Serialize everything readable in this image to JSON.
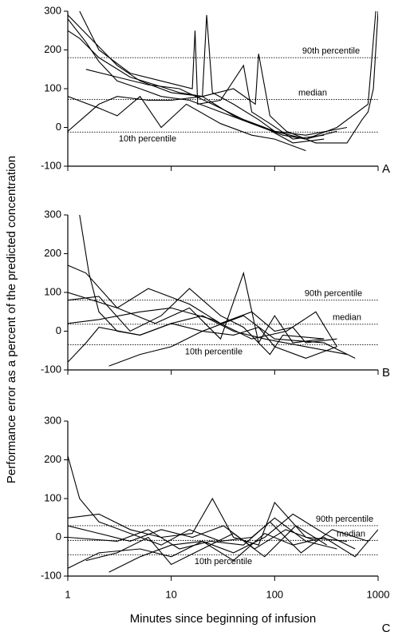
{
  "chart_data": [
    {
      "type": "line",
      "panel": "A",
      "log_x": true,
      "xlim": [
        1,
        1000
      ],
      "xticks": [
        1,
        10,
        100,
        1000
      ],
      "ylim": [
        -100,
        300
      ],
      "yticks": [
        -100,
        0,
        100,
        200,
        300
      ],
      "reference_lines": [
        {
          "label": "90th percentile",
          "value": 180
        },
        {
          "label": "median",
          "value": 72
        },
        {
          "label": "10th percentile",
          "value": -12
        }
      ],
      "series": [
        {
          "color": "#000000",
          "x": [
            1,
            1.5,
            2,
            3,
            5,
            8,
            15,
            30,
            60,
            120,
            200,
            400
          ],
          "values": [
            280,
            220,
            170,
            120,
            100,
            80,
            70,
            40,
            10,
            -20,
            -30,
            -10
          ]
        },
        {
          "color": "#000000",
          "x": [
            1,
            1.3,
            2,
            4,
            7,
            12,
            20,
            40,
            80,
            150,
            300
          ],
          "values": [
            250,
            230,
            180,
            130,
            110,
            90,
            80,
            30,
            0,
            -40,
            -30
          ]
        },
        {
          "color": "#000000",
          "x": [
            1,
            2,
            3,
            6,
            10,
            20,
            22,
            25,
            40,
            70,
            100,
            200,
            500
          ],
          "values": [
            -10,
            60,
            80,
            70,
            70,
            80,
            290,
            90,
            60,
            20,
            -10,
            -20,
            0
          ]
        },
        {
          "color": "#000000",
          "x": [
            1.3,
            2,
            4,
            8,
            16,
            17,
            18,
            30,
            50,
            60,
            90,
            150,
            300
          ],
          "values": [
            300,
            200,
            140,
            120,
            100,
            250,
            60,
            70,
            160,
            40,
            10,
            -30,
            -20
          ]
        },
        {
          "color": "#000000",
          "x": [
            1,
            3,
            5,
            10,
            20,
            40,
            65,
            70,
            90,
            130,
            250,
            500,
            700,
            800,
            900,
            1000
          ],
          "values": [
            290,
            160,
            120,
            90,
            80,
            100,
            60,
            190,
            30,
            -10,
            -40,
            -40,
            20,
            40,
            100,
            300
          ]
        },
        {
          "color": "#000000",
          "x": [
            1,
            2,
            3,
            5,
            8,
            14,
            30,
            60,
            100,
            200
          ],
          "values": [
            80,
            50,
            30,
            80,
            0,
            60,
            10,
            -20,
            -30,
            -60
          ]
        },
        {
          "color": "#000000",
          "x": [
            1.5,
            3,
            6,
            12,
            25,
            50,
            100,
            200,
            400,
            800,
            950
          ],
          "values": [
            150,
            130,
            110,
            100,
            60,
            20,
            -10,
            -30,
            0,
            60,
            300
          ]
        }
      ]
    },
    {
      "type": "line",
      "panel": "B",
      "log_x": true,
      "xlim": [
        1,
        1000
      ],
      "xticks": [
        1,
        10,
        100,
        1000
      ],
      "ylim": [
        -100,
        300
      ],
      "yticks": [
        -100,
        0,
        100,
        200,
        300
      ],
      "y_label": "Performance error as a percent of the predicted concentration",
      "reference_lines": [
        {
          "label": "90th percentile",
          "value": 80
        },
        {
          "label": "median",
          "value": 18
        },
        {
          "label": "10th percentile",
          "value": -35
        }
      ],
      "series": [
        {
          "color": "#000000",
          "x": [
            1.3,
            1.6,
            2,
            3,
            5,
            10,
            20,
            40,
            80,
            200,
            500
          ],
          "values": [
            300,
            150,
            50,
            0,
            -10,
            20,
            40,
            0,
            -20,
            -40,
            -60
          ]
        },
        {
          "color": "#000000",
          "x": [
            1,
            1.5,
            3,
            6,
            15,
            30,
            60,
            100,
            150,
            200,
            400
          ],
          "values": [
            170,
            150,
            60,
            110,
            70,
            20,
            50,
            0,
            10,
            -30,
            -20
          ]
        },
        {
          "color": "#000000",
          "x": [
            1,
            2,
            4,
            8,
            15,
            30,
            50,
            90,
            120,
            300
          ],
          "values": [
            80,
            90,
            0,
            40,
            110,
            40,
            10,
            -60,
            -10,
            -20
          ]
        },
        {
          "color": "#000000",
          "x": [
            1,
            1.5,
            2,
            5,
            10,
            20,
            50,
            100,
            300,
            600
          ],
          "values": [
            -80,
            -30,
            10,
            -10,
            20,
            0,
            40,
            -20,
            -30,
            -70
          ]
        },
        {
          "color": "#000000",
          "x": [
            2.5,
            5,
            10,
            20,
            40,
            70,
            100,
            200,
            400
          ],
          "values": [
            -90,
            -60,
            -40,
            0,
            -10,
            10,
            -40,
            -70,
            -40
          ]
        },
        {
          "color": "#000000",
          "x": [
            1,
            3,
            7,
            15,
            30,
            50,
            70,
            100,
            150,
            300
          ],
          "values": [
            100,
            60,
            20,
            60,
            -20,
            150,
            -30,
            40,
            -30,
            -20
          ]
        },
        {
          "color": "#000000",
          "x": [
            1,
            2,
            5,
            10,
            25,
            60,
            130,
            250,
            400
          ],
          "values": [
            20,
            30,
            50,
            60,
            30,
            -20,
            0,
            50,
            -40
          ]
        }
      ]
    },
    {
      "type": "line",
      "panel": "C",
      "log_x": true,
      "xlim": [
        1,
        1000
      ],
      "xticks": [
        1,
        10,
        100,
        1000
      ],
      "ylim": [
        -100,
        300
      ],
      "yticks": [
        -100,
        0,
        100,
        200,
        300
      ],
      "x_label": "Minutes since beginning of infusion",
      "reference_lines": [
        {
          "label": "90th percentile",
          "value": 30
        },
        {
          "label": "median",
          "value": -8
        },
        {
          "label": "10th percentile",
          "value": -45
        }
      ],
      "series": [
        {
          "color": "#000000",
          "x": [
            1,
            1.3,
            2,
            4,
            8,
            15,
            30,
            60,
            100,
            200,
            400
          ],
          "values": [
            210,
            100,
            40,
            10,
            -20,
            20,
            -10,
            0,
            50,
            -10,
            -30
          ]
        },
        {
          "color": "#000000",
          "x": [
            1,
            2,
            5,
            10,
            20,
            40,
            80,
            150,
            300,
            600,
            1000
          ],
          "values": [
            -80,
            -40,
            -30,
            -50,
            -10,
            -60,
            10,
            -20,
            0,
            -50,
            20
          ]
        },
        {
          "color": "#000000",
          "x": [
            1,
            2,
            4,
            8,
            16,
            25,
            40,
            70,
            100,
            200,
            500
          ],
          "values": [
            50,
            60,
            20,
            0,
            10,
            100,
            0,
            -20,
            90,
            0,
            -10
          ]
        },
        {
          "color": "#000000",
          "x": [
            1,
            3,
            6,
            12,
            24,
            50,
            90,
            180,
            360,
            800
          ],
          "values": [
            0,
            -10,
            20,
            -30,
            -10,
            -20,
            40,
            -40,
            20,
            -10
          ]
        },
        {
          "color": "#000000",
          "x": [
            1.5,
            3,
            6,
            10,
            20,
            40,
            80,
            160,
            320
          ],
          "values": [
            -60,
            -40,
            0,
            -70,
            -30,
            10,
            -50,
            30,
            -20
          ]
        },
        {
          "color": "#000000",
          "x": [
            1,
            2,
            4,
            8,
            16,
            32,
            64,
            128,
            256
          ],
          "values": [
            30,
            10,
            -10,
            20,
            0,
            30,
            -30,
            20,
            -10
          ]
        },
        {
          "color": "#000000",
          "x": [
            2.5,
            5,
            10,
            20,
            40,
            80,
            150,
            300,
            600
          ],
          "values": [
            -90,
            -50,
            -20,
            -10,
            -40,
            0,
            60,
            10,
            -30
          ]
        }
      ]
    }
  ]
}
